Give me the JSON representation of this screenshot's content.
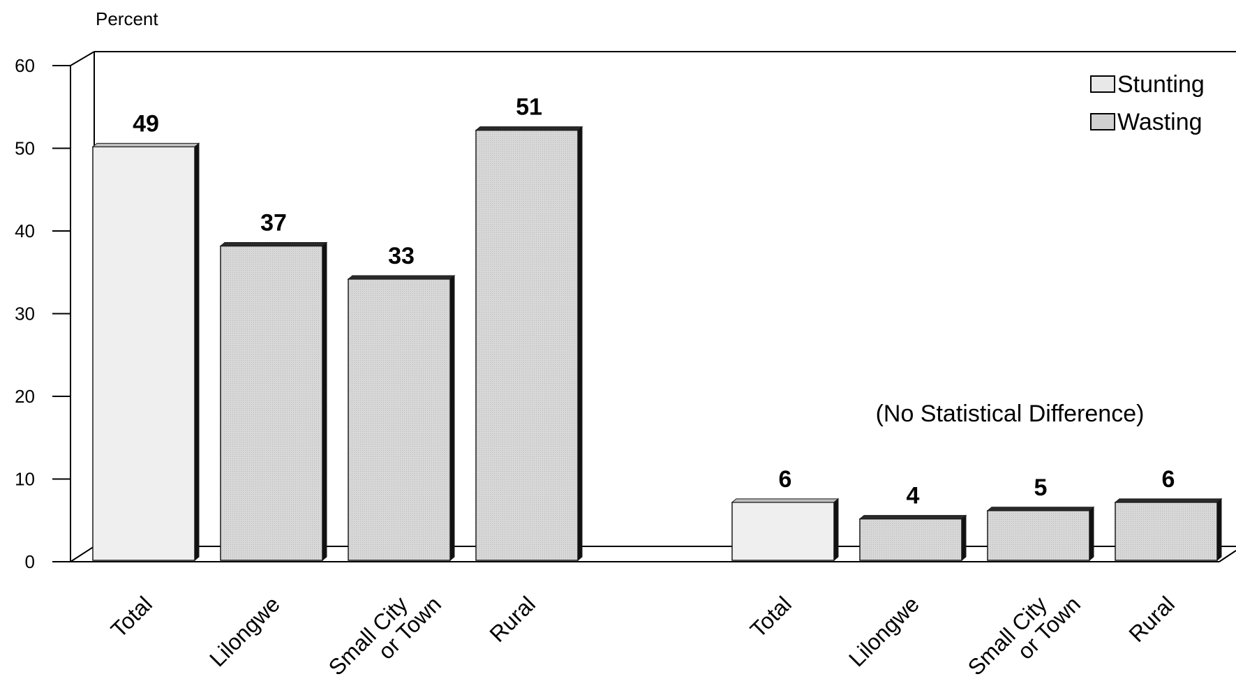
{
  "chart_data": {
    "type": "bar",
    "ylabel": "Percent",
    "ylim": [
      0,
      60
    ],
    "yticks": [
      0,
      10,
      20,
      30,
      40,
      50,
      60
    ],
    "legend": {
      "position": "top-right",
      "entries": [
        "Stunting",
        "Wasting"
      ]
    },
    "grid": false,
    "groups": [
      {
        "series": "Stunting",
        "categories": [
          "Total",
          "Lilongwe",
          "Small City\nor Town",
          "Rural"
        ],
        "values": [
          49,
          37,
          33,
          51
        ],
        "note": ""
      },
      {
        "series": "Wasting",
        "categories": [
          "Total",
          "Lilongwe",
          "Small City\nor Town",
          "Rural"
        ],
        "values": [
          6,
          4,
          5,
          6
        ],
        "note": "(No Statistical Difference)"
      }
    ]
  },
  "colors": {
    "total_bar": "#efefef",
    "region_bar": "#d4d4d4",
    "bar_edge": "#1a1a1a",
    "axis": "#000000"
  }
}
